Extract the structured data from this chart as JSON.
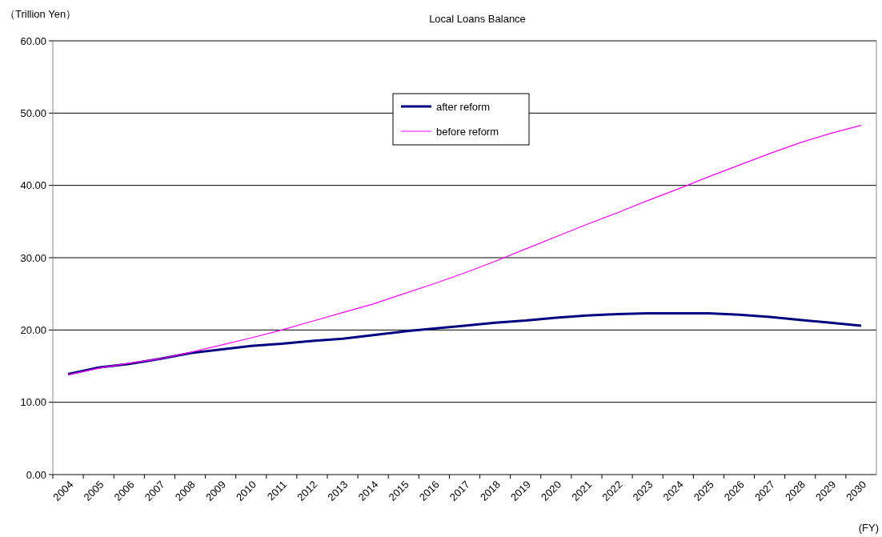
{
  "chart_data": {
    "type": "line",
    "title": "Local Loans Balance",
    "ylabel": "（Trillion Yen）",
    "xlabel": "(FY)",
    "categories": [
      "2004",
      "2005",
      "2006",
      "2007",
      "2008",
      "2009",
      "2010",
      "2011",
      "2012",
      "2013",
      "2014",
      "2015",
      "2016",
      "2017",
      "2018",
      "2019",
      "2020",
      "2021",
      "2022",
      "2023",
      "2024",
      "2025",
      "2026",
      "2027",
      "2028",
      "2029",
      "2030"
    ],
    "series": [
      {
        "name": "after reform",
        "color": "#000080",
        "values": [
          13.9,
          14.8,
          15.3,
          16.0,
          16.8,
          17.3,
          17.8,
          18.1,
          18.5,
          18.8,
          19.3,
          19.8,
          20.2,
          20.6,
          21.0,
          21.3,
          21.7,
          22.0,
          22.2,
          22.3,
          22.3,
          22.3,
          22.1,
          21.8,
          21.4,
          21.0,
          20.6
        ]
      },
      {
        "name": "before reform",
        "color": "#ff00ff",
        "values": [
          13.8,
          14.7,
          15.4,
          16.0,
          16.9,
          17.9,
          18.9,
          20.0,
          21.2,
          22.4,
          23.6,
          25.0,
          26.4,
          27.9,
          29.5,
          31.2,
          32.9,
          34.6,
          36.2,
          37.9,
          39.5,
          41.2,
          42.8,
          44.4,
          45.9,
          47.2,
          48.3
        ]
      }
    ],
    "ylim": [
      0,
      60
    ],
    "yticks": [
      {
        "value": 0,
        "label": "0.00"
      },
      {
        "value": 10,
        "label": "10.00"
      },
      {
        "value": 20,
        "label": "20.00"
      },
      {
        "value": 30,
        "label": "30.00"
      },
      {
        "value": 40,
        "label": "40.00"
      },
      {
        "value": 50,
        "label": "50.00"
      },
      {
        "value": 60,
        "label": "60.00"
      }
    ],
    "grid": "y",
    "legend": "top",
    "line_style": "solid"
  }
}
